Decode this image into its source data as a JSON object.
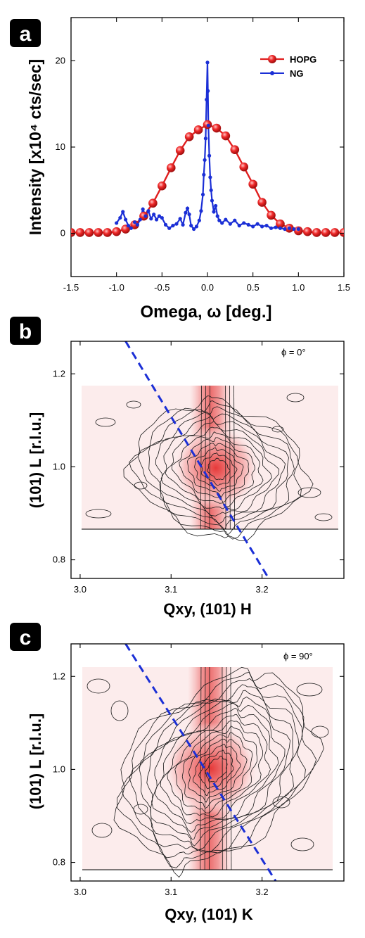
{
  "chart_data": [
    {
      "panel": "a",
      "type": "line",
      "xlabel": "Omega, ω [deg.]",
      "ylabel": "Intensity [x10⁴ cts/sec]",
      "xlim": [
        -1.5,
        1.5
      ],
      "ylim": [
        -5,
        25
      ],
      "xticks": [
        "-1.5",
        "-1.0",
        "-0.5",
        "0.0",
        "0.5",
        "1.0",
        "1.5"
      ],
      "yticks": [
        "0",
        "10",
        "20"
      ],
      "legend_position": "top-right",
      "series": [
        {
          "name": "HOPG",
          "color": "#e01e1e",
          "marker": "sphere",
          "x": [
            -1.5,
            -1.4,
            -1.3,
            -1.2,
            -1.1,
            -1.0,
            -0.9,
            -0.8,
            -0.7,
            -0.6,
            -0.5,
            -0.4,
            -0.3,
            -0.2,
            -0.1,
            0.0,
            0.1,
            0.2,
            0.3,
            0.4,
            0.5,
            0.6,
            0.7,
            0.8,
            0.9,
            1.0,
            1.1,
            1.2,
            1.3,
            1.4,
            1.5
          ],
          "y": [
            0.1,
            0.1,
            0.1,
            0.1,
            0.1,
            0.2,
            0.5,
            1.0,
            2.0,
            3.5,
            5.5,
            7.6,
            9.6,
            11.2,
            12.0,
            12.6,
            12.2,
            11.3,
            9.7,
            7.7,
            5.7,
            3.6,
            2.1,
            1.1,
            0.6,
            0.3,
            0.2,
            0.1,
            0.1,
            0.1,
            0.1
          ]
        },
        {
          "name": "NG",
          "color": "#1b2fd6",
          "marker": "dot",
          "x": [
            -1.0,
            -0.96,
            -0.93,
            -0.9,
            -0.87,
            -0.84,
            -0.8,
            -0.77,
            -0.74,
            -0.71,
            -0.68,
            -0.65,
            -0.62,
            -0.59,
            -0.56,
            -0.53,
            -0.5,
            -0.46,
            -0.42,
            -0.38,
            -0.34,
            -0.3,
            -0.27,
            -0.24,
            -0.22,
            -0.2,
            -0.18,
            -0.15,
            -0.12,
            -0.09,
            -0.07,
            -0.05,
            -0.04,
            -0.03,
            -0.02,
            -0.01,
            0.0,
            0.005,
            0.01,
            0.02,
            0.03,
            0.04,
            0.05,
            0.07,
            0.09,
            0.11,
            0.13,
            0.16,
            0.2,
            0.25,
            0.3,
            0.35,
            0.4,
            0.45,
            0.5,
            0.55,
            0.6,
            0.65,
            0.7,
            0.75,
            0.8,
            0.85,
            0.9,
            0.95,
            1.0
          ],
          "y": [
            1.2,
            1.8,
            2.5,
            1.6,
            0.9,
            0.6,
            1.3,
            1.0,
            1.6,
            2.8,
            2.0,
            2.6,
            1.7,
            2.2,
            1.6,
            2.0,
            1.8,
            1.0,
            0.6,
            0.9,
            1.1,
            1.7,
            1.0,
            2.4,
            2.9,
            2.2,
            0.9,
            0.5,
            0.8,
            1.5,
            2.6,
            4.5,
            6.8,
            8.5,
            11.0,
            15.5,
            19.8,
            16.5,
            12.5,
            9.0,
            6.5,
            5.0,
            3.8,
            2.5,
            3.2,
            2.0,
            1.5,
            1.2,
            1.6,
            1.1,
            1.5,
            0.9,
            1.2,
            1.0,
            0.8,
            1.1,
            0.8,
            0.9,
            0.6,
            0.7,
            0.6,
            0.5,
            0.6,
            0.5,
            0.5
          ]
        }
      ]
    },
    {
      "panel": "b",
      "type": "contour",
      "xlabel": "Qxy, (101) H",
      "ylabel": "(101) L  [r.l.u.]",
      "annotation": "ϕ = 0°",
      "xlim": [
        2.99,
        3.29
      ],
      "ylim": [
        0.76,
        1.27
      ],
      "xticks": [
        "3.0",
        "3.1",
        "3.2"
      ],
      "yticks": [
        "0.8",
        "1.0",
        "1.2"
      ],
      "peak": {
        "x": 3.152,
        "y": 0.995
      },
      "map_extent": {
        "x": [
          3.01,
          3.28
        ],
        "y": [
          0.86,
          1.18
        ]
      },
      "dashed_line": {
        "x": [
          3.05,
          3.215
        ],
        "y": [
          1.27,
          0.735
        ],
        "color": "#1b2fd6"
      }
    },
    {
      "panel": "c",
      "type": "contour",
      "xlabel": "Qxy, (101) K",
      "ylabel": "(101) L  [r.l.u.]",
      "annotation": "ϕ = 90°",
      "xlim": [
        2.99,
        3.29
      ],
      "ylim": [
        0.76,
        1.27
      ],
      "xticks": [
        "3.0",
        "3.1",
        "3.2"
      ],
      "yticks": [
        "0.8",
        "1.0",
        "1.2"
      ],
      "peak": {
        "x": 3.15,
        "y": 1.0
      },
      "map_extent": {
        "x": [
          3.005,
          3.275
        ],
        "y": [
          0.775,
          1.225
        ]
      },
      "dashed_line": {
        "x": [
          3.05,
          3.215
        ],
        "y": [
          1.27,
          0.76
        ],
        "color": "#1b2fd6"
      }
    }
  ],
  "badges": {
    "a": "a",
    "b": "b",
    "c": "c"
  },
  "legend": {
    "hopg": "HOPG",
    "ng": "NG"
  },
  "annotations": {
    "b": "ϕ = 0°",
    "c": "ϕ = 90°"
  },
  "labels": {
    "a_x": "Omega, ω [deg.]",
    "a_y": "Intensity [x10⁴ cts/sec]",
    "b_x": "Qxy, (101) H",
    "b_y": "(101) L  [r.l.u.]",
    "c_x": "Qxy, (101) K",
    "c_y": "(101) L  [r.l.u.]"
  }
}
